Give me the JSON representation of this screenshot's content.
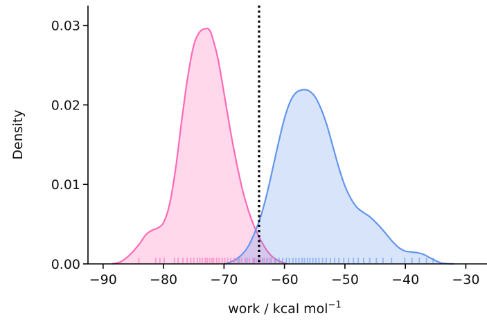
{
  "chart_data": {
    "type": "area",
    "xlabel": "work / kcal mol",
    "xlabel_sup": "−1",
    "ylabel": "Density",
    "xlim": [
      -92.5,
      -26.5
    ],
    "ylim": [
      0,
      0.0325
    ],
    "xticks": [
      -90,
      -80,
      -70,
      -60,
      -50,
      -40,
      -30
    ],
    "xtick_labels": [
      "−90",
      "−80",
      "−70",
      "−60",
      "−50",
      "−40",
      "−30"
    ],
    "yticks": [
      0.0,
      0.01,
      0.02,
      0.03
    ],
    "ytick_labels": [
      "0.00",
      "0.01",
      "0.02",
      "0.03"
    ],
    "grid": false,
    "vline": {
      "x": -64.2,
      "style": "dotted",
      "color": "#000000"
    },
    "series": [
      {
        "color": "#ff69b4",
        "x": [
          -88.5,
          -87,
          -85.5,
          -84,
          -83,
          -82,
          -81,
          -80,
          -79,
          -78,
          -77,
          -76,
          -75,
          -74,
          -73,
          -72.5,
          -72,
          -71,
          -70,
          -69,
          -68,
          -67,
          -66,
          -65,
          -64,
          -63,
          -62,
          -61,
          -60,
          -59.5
        ],
        "y": [
          0.0,
          0.0003,
          0.0012,
          0.0025,
          0.0036,
          0.0042,
          0.0045,
          0.0052,
          0.0075,
          0.012,
          0.018,
          0.0235,
          0.0275,
          0.0292,
          0.0296,
          0.0295,
          0.0287,
          0.0258,
          0.0215,
          0.017,
          0.013,
          0.0095,
          0.0068,
          0.0047,
          0.0031,
          0.0018,
          0.0009,
          0.0004,
          0.0001,
          0.0
        ]
      },
      {
        "color": "#6495ed",
        "x": [
          -70,
          -69,
          -68,
          -67,
          -66,
          -65,
          -64,
          -63,
          -62,
          -61,
          -60,
          -59,
          -58,
          -57,
          -56.5,
          -56,
          -55,
          -54,
          -53,
          -52,
          -51,
          -50,
          -49,
          -48,
          -47,
          -46,
          -45,
          -44,
          -43,
          -42,
          -41,
          -40,
          -39,
          -38,
          -37,
          -36,
          -35,
          -34,
          -33,
          -32
        ],
        "y": [
          0.0,
          0.0002,
          0.0006,
          0.0012,
          0.0022,
          0.0038,
          0.0058,
          0.0085,
          0.0118,
          0.0152,
          0.0183,
          0.0205,
          0.0216,
          0.0219,
          0.0219,
          0.0218,
          0.0211,
          0.0196,
          0.0175,
          0.0148,
          0.0121,
          0.0098,
          0.0082,
          0.0071,
          0.0065,
          0.006,
          0.0053,
          0.0045,
          0.0036,
          0.0027,
          0.002,
          0.0016,
          0.0015,
          0.0014,
          0.0012,
          0.0008,
          0.0004,
          0.0001,
          3e-05,
          0.0
        ]
      }
    ],
    "rug": [
      {
        "color": "#ff69b4",
        "x": [
          -84.1,
          -81.3,
          -80.6,
          -79.9,
          -78.2,
          -77.6,
          -76.8,
          -76.1,
          -75.5,
          -75.0,
          -74.4,
          -74.0,
          -73.6,
          -73.1,
          -72.8,
          -72.4,
          -72.0,
          -71.7,
          -71.2,
          -70.8,
          -70.3,
          -69.9,
          -69.4,
          -68.9,
          -68.3,
          -67.8,
          -67.1,
          -66.5,
          -65.8,
          -65.2,
          -64.7,
          -64.0,
          -63.3,
          -62.5,
          -61.6
        ]
      },
      {
        "color": "#6495ed",
        "x": [
          -67.5,
          -66.2,
          -65.0,
          -64.3,
          -63.6,
          -62.9,
          -62.2,
          -61.5,
          -60.9,
          -60.3,
          -59.7,
          -59.2,
          -58.6,
          -58.1,
          -57.6,
          -57.1,
          -56.7,
          -56.2,
          -55.8,
          -55.3,
          -54.8,
          -54.3,
          -53.7,
          -53.1,
          -52.4,
          -51.7,
          -51.0,
          -50.2,
          -49.4,
          -48.6,
          -47.8,
          -46.9,
          -45.9,
          -44.8,
          -43.7,
          -42.3,
          -40.1,
          -38.9,
          -37.7,
          -36.5,
          -35.4
        ]
      }
    ]
  }
}
